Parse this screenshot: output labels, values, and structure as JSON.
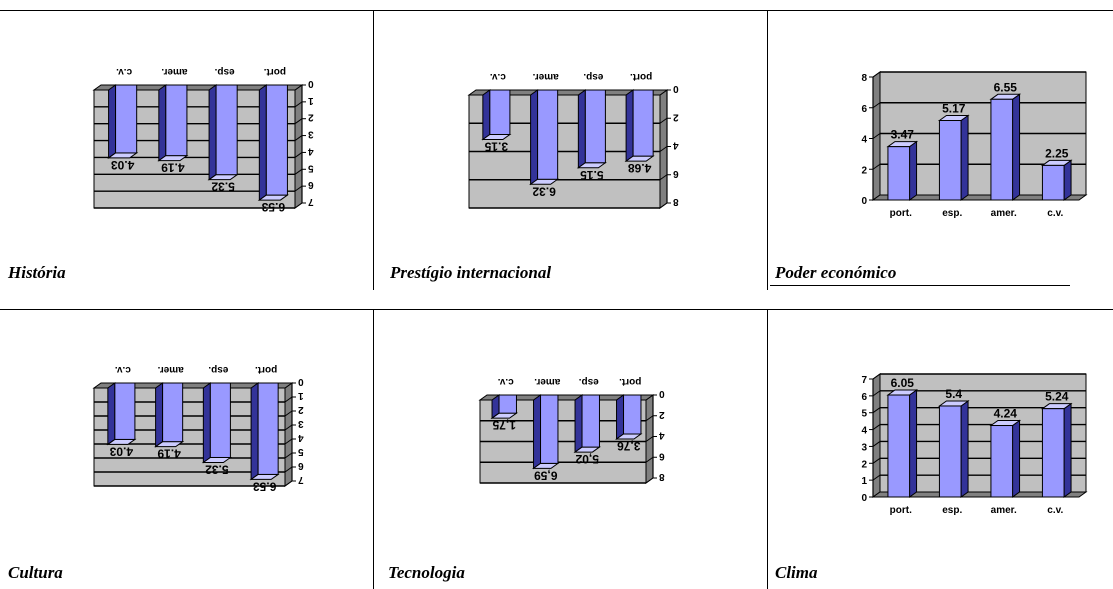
{
  "colors": {
    "bar_front": "#9999ff",
    "bar_side": "#333399",
    "bar_top": "#ccccff",
    "wall": "#c0c0c0",
    "floor": "#808080",
    "gridline": "#000000"
  },
  "chart_data": [
    {
      "type": "bar",
      "title": "História",
      "categories": [
        "port.",
        "esp.",
        "amer.",
        "c.v."
      ],
      "values": [
        6.53,
        5.32,
        4.19,
        4.03
      ],
      "value_labels": [
        "6.53",
        "5.32",
        "4.19",
        "4.03"
      ],
      "ylim": [
        0,
        7
      ],
      "yticks": [
        "0",
        "1",
        "2",
        "3",
        "4",
        "5",
        "6",
        "7"
      ],
      "orientation": "rotated-180",
      "grid": true
    },
    {
      "type": "bar",
      "title": "Prestígio internacional",
      "categories": [
        "port.",
        "esp.",
        "amer.",
        "c.v."
      ],
      "values": [
        4.68,
        5.15,
        6.32,
        3.15
      ],
      "value_labels": [
        "4.68",
        "5.15",
        "6.32",
        "3.15"
      ],
      "ylim": [
        0,
        8
      ],
      "yticks": [
        "0",
        "2",
        "4",
        "6",
        "8"
      ],
      "orientation": "rotated-180",
      "grid": true
    },
    {
      "type": "bar",
      "title": "Poder económico",
      "categories": [
        "port.",
        "esp.",
        "amer.",
        "c.v."
      ],
      "values": [
        3.47,
        5.17,
        6.55,
        2.25
      ],
      "value_labels": [
        "3.47",
        "5.17",
        "6.55",
        "2.25"
      ],
      "ylim": [
        0,
        8
      ],
      "yticks": [
        "0",
        "2",
        "4",
        "6",
        "8"
      ],
      "orientation": "normal",
      "grid": true
    },
    {
      "type": "bar",
      "title": "Cultura",
      "categories": [
        "port.",
        "esp.",
        "amer.",
        "c.v."
      ],
      "values": [
        6.53,
        5.32,
        4.19,
        4.03
      ],
      "value_labels": [
        "6.53",
        "5.32",
        "4.19",
        "4.03"
      ],
      "ylim": [
        0,
        7
      ],
      "yticks": [
        "0",
        "1",
        "2",
        "3",
        "4",
        "5",
        "6",
        "7"
      ],
      "orientation": "rotated-180",
      "grid": true
    },
    {
      "type": "bar",
      "title": "Tecnologia",
      "categories": [
        "port.",
        "esp.",
        "amer.",
        "c.v."
      ],
      "values": [
        3.76,
        5.02,
        6.59,
        1.75
      ],
      "value_labels": [
        "3,76",
        "5,02",
        "6,59",
        "1,75"
      ],
      "ylim": [
        0,
        8
      ],
      "yticks": [
        "0",
        "2",
        "4",
        "6",
        "8"
      ],
      "orientation": "rotated-180",
      "grid": true
    },
    {
      "type": "bar",
      "title": "Clima",
      "categories": [
        "port.",
        "esp.",
        "amer.",
        "c.v."
      ],
      "values": [
        6.05,
        5.4,
        4.24,
        5.24
      ],
      "value_labels": [
        "6.05",
        "5.4",
        "4.24",
        "5.24"
      ],
      "ylim": [
        0,
        7
      ],
      "yticks": [
        "0",
        "1",
        "2",
        "3",
        "4",
        "5",
        "6",
        "7"
      ],
      "orientation": "normal",
      "grid": true
    }
  ]
}
